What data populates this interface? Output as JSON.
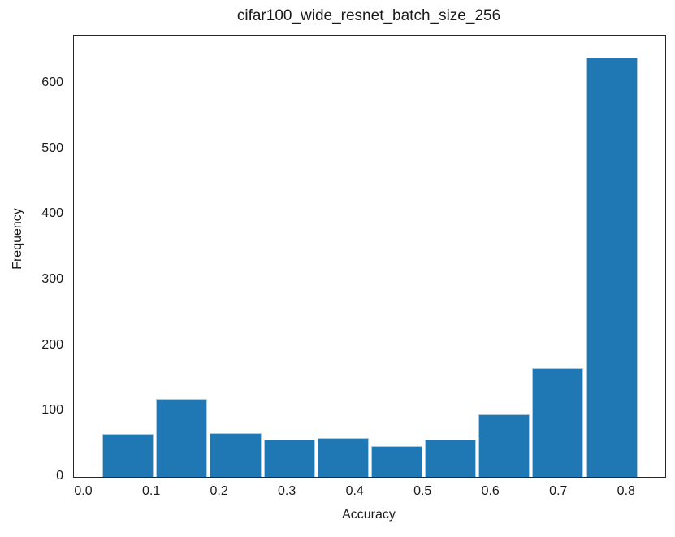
{
  "chart_data": {
    "type": "histogram",
    "title": "cifar100_wide_resnet_batch_size_256",
    "xlabel": "Accuracy",
    "ylabel": "Frequency",
    "bin_edges": [
      0.025,
      0.104,
      0.183,
      0.263,
      0.342,
      0.421,
      0.5,
      0.579,
      0.658,
      0.738,
      0.817
    ],
    "counts": [
      66,
      119,
      67,
      57,
      59,
      47,
      57,
      95,
      166,
      640
    ],
    "xlim": [
      -0.015,
      0.8565
    ],
    "ylim": [
      0,
      673
    ],
    "xtick_values": [
      0.0,
      0.1,
      0.2,
      0.3,
      0.4,
      0.5,
      0.6,
      0.7,
      0.8
    ],
    "xtick_labels": [
      "0.0",
      "0.1",
      "0.2",
      "0.3",
      "0.4",
      "0.5",
      "0.6",
      "0.7",
      "0.8"
    ],
    "ytick_values": [
      0,
      100,
      200,
      300,
      400,
      500,
      600
    ],
    "ytick_labels": [
      "0",
      "100",
      "200",
      "300",
      "400",
      "500",
      "600"
    ],
    "grid": false,
    "legend": null,
    "colors": {
      "bar_fill": "#1f77b4",
      "bar_edge": "#a9cbe3",
      "spine": "#262626",
      "text": "#1a1a1a",
      "background": "#ffffff"
    }
  }
}
